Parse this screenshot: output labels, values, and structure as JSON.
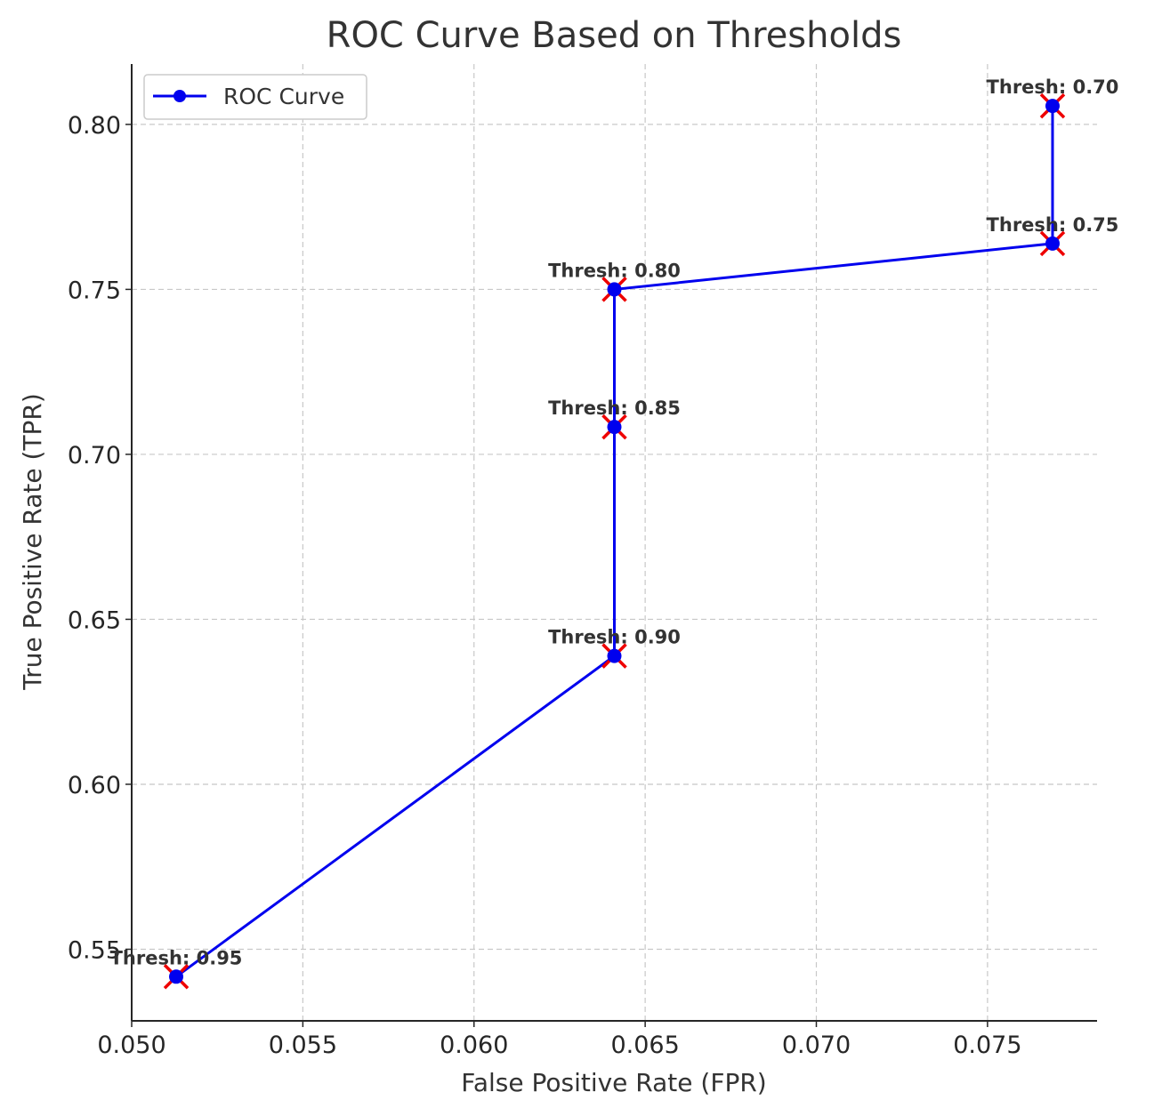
{
  "chart_data": {
    "type": "line",
    "title": "ROC Curve Based on Thresholds",
    "xlabel": "False Positive Rate (FPR)",
    "ylabel": "True Positive Rate (TPR)",
    "xlim": [
      0.05,
      0.0782
    ],
    "ylim": [
      0.5283,
      0.8183
    ],
    "x_ticks": [
      "0.050",
      "0.055",
      "0.060",
      "0.065",
      "0.070",
      "0.075"
    ],
    "x_tick_values": [
      0.05,
      0.055,
      0.06,
      0.065,
      0.07,
      0.075
    ],
    "y_ticks": [
      "0.55",
      "0.60",
      "0.65",
      "0.70",
      "0.75",
      "0.80"
    ],
    "y_tick_values": [
      0.55,
      0.6,
      0.65,
      0.7,
      0.75,
      0.8
    ],
    "grid": true,
    "legend_position": "top-left",
    "series": [
      {
        "name": "ROC Curve",
        "color": "#0000ee",
        "marker_color": "#ee0000",
        "points": [
          {
            "x": 0.0513,
            "y": 0.5417,
            "label": "Thresh: 0.95"
          },
          {
            "x": 0.0641,
            "y": 0.6389,
            "label": "Thresh: 0.90"
          },
          {
            "x": 0.0641,
            "y": 0.7083,
            "label": "Thresh: 0.85"
          },
          {
            "x": 0.0641,
            "y": 0.75,
            "label": "Thresh: 0.80"
          },
          {
            "x": 0.0769,
            "y": 0.7639,
            "label": "Thresh: 0.75"
          },
          {
            "x": 0.0769,
            "y": 0.8056,
            "label": "Thresh: 0.70"
          }
        ]
      }
    ]
  }
}
